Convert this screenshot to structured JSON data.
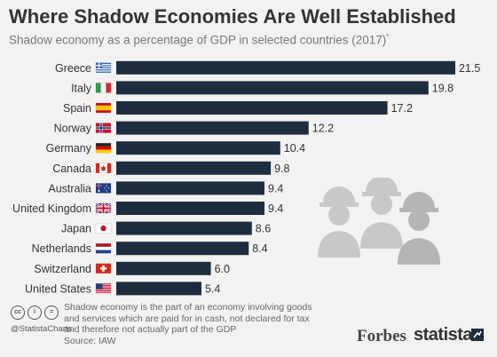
{
  "header": {
    "title": "Where Shadow Economies Are Well Established",
    "subtitle": "Shadow economy as a percentage of GDP in selected countries (2017)",
    "subtitle_mark": "*"
  },
  "chart_data": {
    "type": "bar",
    "orientation": "horizontal",
    "categories": [
      "Greece",
      "Italy",
      "Spain",
      "Norway",
      "Germany",
      "Canada",
      "Australia",
      "United Kingdom",
      "Japan",
      "Netherlands",
      "Switzerland",
      "United States"
    ],
    "values": [
      21.5,
      19.8,
      17.2,
      12.2,
      10.4,
      9.8,
      9.4,
      9.4,
      8.6,
      8.4,
      6.0,
      5.4
    ],
    "value_labels": [
      "21.5",
      "19.8",
      "17.2",
      "12.2",
      "10.4",
      "9.8",
      "9.4",
      "9.4",
      "8.6",
      "8.4",
      "6.0",
      "5.4"
    ],
    "xlim": [
      0,
      21.5
    ],
    "bar_color": "#1e2d3d",
    "grid": false,
    "legend": "none"
  },
  "footer": {
    "footnote": "Shadow economy is the part of an economy involving goods and services which are paid for in cash, not declared for tax and therefore not actually part of the GDP",
    "source": "Source: IAW",
    "handle": "@StatistaCharts",
    "cc_icons": [
      "cc",
      "i",
      "="
    ],
    "partner": "Forbes",
    "brand": "statista"
  },
  "icons": {
    "workers": "construction-workers-icon",
    "flags": [
      "greece-flag-icon",
      "italy-flag-icon",
      "spain-flag-icon",
      "norway-flag-icon",
      "germany-flag-icon",
      "canada-flag-icon",
      "australia-flag-icon",
      "uk-flag-icon",
      "japan-flag-icon",
      "netherlands-flag-icon",
      "switzerland-flag-icon",
      "usa-flag-icon"
    ]
  }
}
